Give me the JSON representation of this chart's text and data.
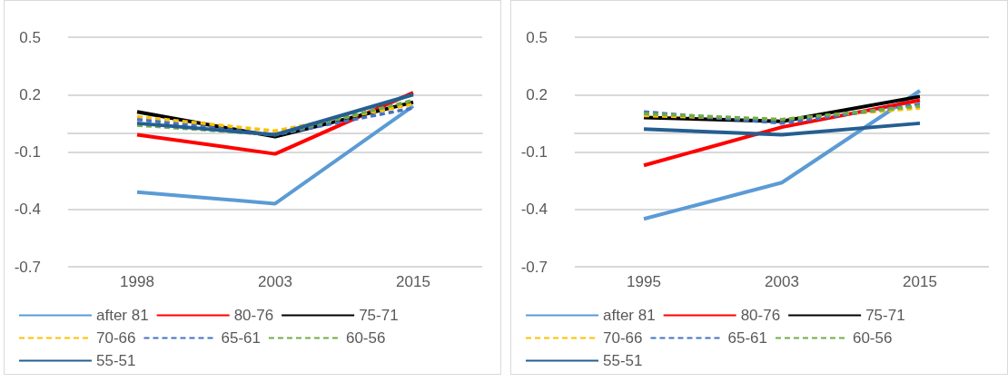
{
  "chart_data": [
    {
      "type": "line",
      "categories": [
        "1998",
        "2003",
        "2015"
      ],
      "ylim": [
        -0.7,
        0.5
      ],
      "yticks": [
        -0.7,
        -0.4,
        -0.1,
        0.2,
        0.5
      ],
      "grid": "y",
      "legend": "bottom",
      "series": [
        {
          "name": "after 81",
          "color": "#5b9bd5",
          "line_style": "solid",
          "values": [
            -0.31,
            -0.37,
            0.14
          ]
        },
        {
          "name": "80-76",
          "color": "#ff0000",
          "line_style": "solid",
          "values": [
            -0.01,
            -0.11,
            0.21
          ]
        },
        {
          "name": "75-71",
          "color": "#000000",
          "line_style": "solid",
          "values": [
            0.11,
            -0.02,
            0.16
          ]
        },
        {
          "name": "70-66",
          "color": "#ffc000",
          "line_style": "dashed",
          "values": [
            0.085,
            0.01,
            0.15
          ]
        },
        {
          "name": "65-61",
          "color": "#4472c4",
          "line_style": "dashed",
          "values": [
            0.07,
            -0.01,
            0.13
          ]
        },
        {
          "name": "60-56",
          "color": "#70ad47",
          "line_style": "dashed",
          "values": [
            0.04,
            -0.01,
            0.17
          ]
        },
        {
          "name": "55-51",
          "color": "#255e91",
          "line_style": "solid",
          "values": [
            0.05,
            -0.01,
            0.2
          ]
        }
      ]
    },
    {
      "type": "line",
      "categories": [
        "1995",
        "2003",
        "2015"
      ],
      "ylim": [
        -0.7,
        0.5
      ],
      "yticks": [
        -0.7,
        -0.4,
        -0.1,
        0.2,
        0.5
      ],
      "grid": "y",
      "legend": "bottom",
      "series": [
        {
          "name": "after 81",
          "color": "#5b9bd5",
          "line_style": "solid",
          "values": [
            -0.45,
            -0.26,
            0.22
          ]
        },
        {
          "name": "80-76",
          "color": "#ff0000",
          "line_style": "solid",
          "values": [
            -0.17,
            0.03,
            0.17
          ]
        },
        {
          "name": "75-71",
          "color": "#000000",
          "line_style": "solid",
          "values": [
            0.08,
            0.06,
            0.19
          ]
        },
        {
          "name": "70-66",
          "color": "#ffc000",
          "line_style": "dashed",
          "values": [
            0.09,
            0.07,
            0.13
          ]
        },
        {
          "name": "65-61",
          "color": "#4472c4",
          "line_style": "dashed",
          "values": [
            0.11,
            0.05,
            0.15
          ]
        },
        {
          "name": "60-56",
          "color": "#70ad47",
          "line_style": "dashed",
          "values": [
            0.1,
            0.07,
            0.14
          ]
        },
        {
          "name": "55-51",
          "color": "#255e91",
          "line_style": "solid",
          "values": [
            0.02,
            -0.01,
            0.05
          ]
        }
      ]
    }
  ]
}
